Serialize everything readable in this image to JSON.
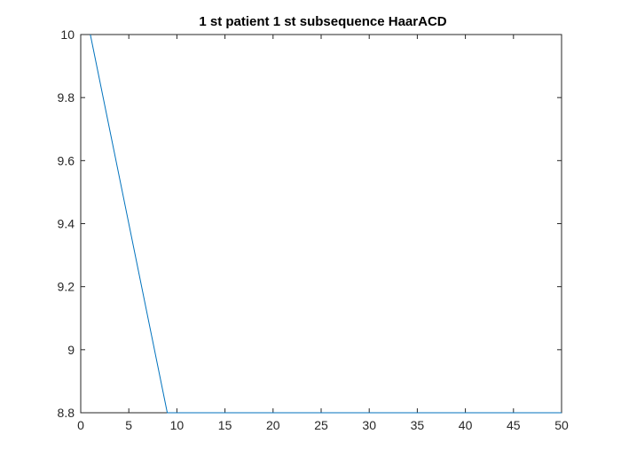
{
  "chart_data": {
    "type": "line",
    "title": "1 st patient 1 st subsequence HaarACD",
    "xlabel": "",
    "ylabel": "",
    "xlim": [
      0,
      50
    ],
    "ylim": [
      8.8,
      10
    ],
    "xticks": [
      0,
      5,
      10,
      15,
      20,
      25,
      30,
      35,
      40,
      45,
      50
    ],
    "yticks": [
      8.8,
      9,
      9.2,
      9.4,
      9.6,
      9.8,
      10
    ],
    "ytick_labels": [
      "8.8",
      "9",
      "9.2",
      "9.4",
      "9.6",
      "9.8",
      "10"
    ],
    "grid": false,
    "series": [
      {
        "color": "#0072BD",
        "x": [
          1,
          9,
          10,
          15,
          20,
          25,
          30,
          35,
          40,
          45,
          50
        ],
        "y": [
          10,
          8.8,
          8.8,
          8.8,
          8.8,
          8.8,
          8.8,
          8.8,
          8.8,
          8.8,
          8.8
        ]
      }
    ]
  }
}
